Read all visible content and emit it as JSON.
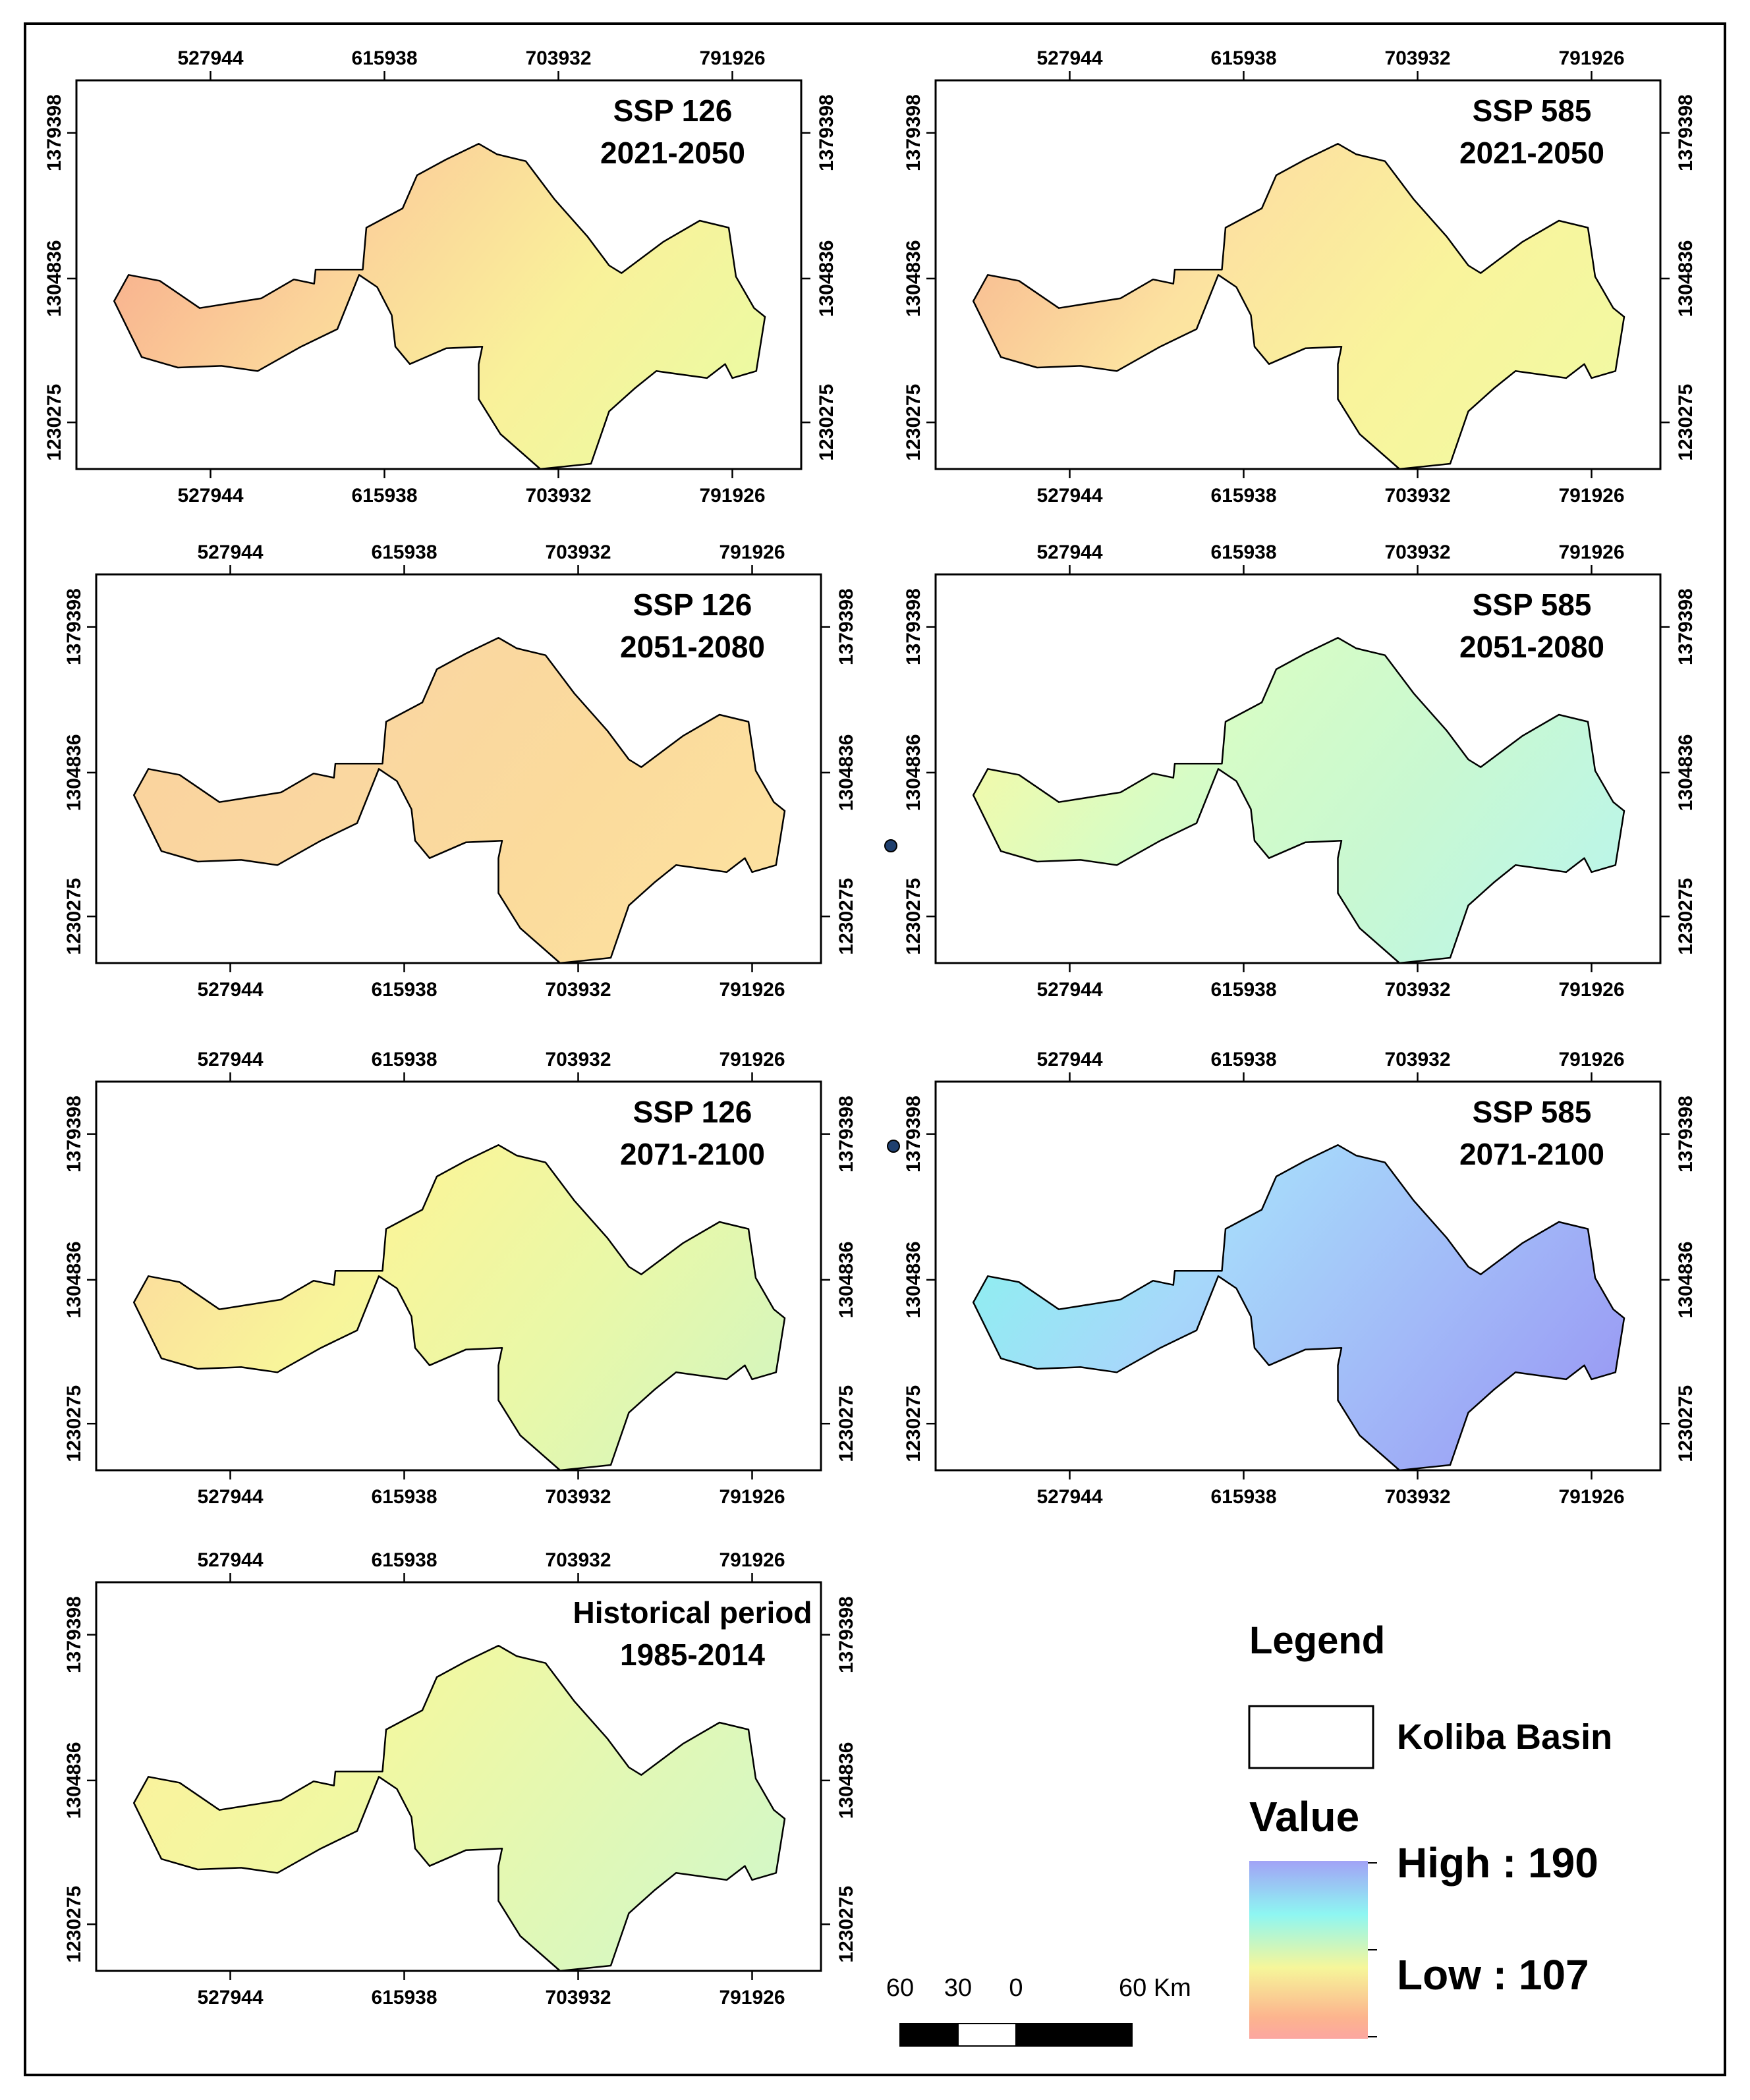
{
  "x_ticks": [
    "527944",
    "615938",
    "703932",
    "791926"
  ],
  "y_ticks": [
    "1379398",
    "1304836",
    "1230275"
  ],
  "panels": [
    {
      "id": "ssp126-2021",
      "title1": "SSP 126",
      "title2": "2021-2050",
      "colors": [
        "#f8b08e",
        "#fbd49a",
        "#f9f19a",
        "#ecfaa2"
      ]
    },
    {
      "id": "ssp585-2021",
      "title1": "SSP 585",
      "title2": "2021-2050",
      "colors": [
        "#f8bc92",
        "#fce2a0",
        "#f9f49c",
        "#f2f9a2"
      ]
    },
    {
      "id": "ssp126-2051",
      "title1": "SSP 126",
      "title2": "2051-2080",
      "colors": [
        "#fad39e",
        "#fad7a0",
        "#fbdb9c",
        "#fce1a0"
      ]
    },
    {
      "id": "ssp585-2051",
      "title1": "SSP 585",
      "title2": "2051-2080",
      "colors": [
        "#f4faa8",
        "#d6fcc6",
        "#c8f8d2",
        "#bcf6e8"
      ]
    },
    {
      "id": "ssp126-2071",
      "title1": "SSP 126",
      "title2": "2071-2100",
      "colors": [
        "#fcdc9c",
        "#f8f59a",
        "#e9f8a8",
        "#d6f6bc"
      ]
    },
    {
      "id": "ssp585-2071",
      "title1": "SSP 585",
      "title2": "2071-2100",
      "colors": [
        "#8ef0f0",
        "#a6d8fa",
        "#a2baf8",
        "#9a9cf4"
      ]
    },
    {
      "id": "historical",
      "title1": "Historical period",
      "title2": "1985-2014",
      "colors": [
        "#fbf29c",
        "#f1f8a2",
        "#e2f8b4",
        "#d4f8c6"
      ]
    }
  ],
  "legend": {
    "title": "Legend",
    "basin_label": "Koliba Basin",
    "value_label": "Value",
    "high_label": "High : 190",
    "low_label": "Low : 107",
    "ramp_colors": [
      "#a2a2f6",
      "#8ef6f2",
      "#f6f69a",
      "#fcb48e",
      "#fca6a0"
    ]
  },
  "scalebar": {
    "labels": [
      "60",
      "30",
      "0",
      "60 Km"
    ]
  }
}
